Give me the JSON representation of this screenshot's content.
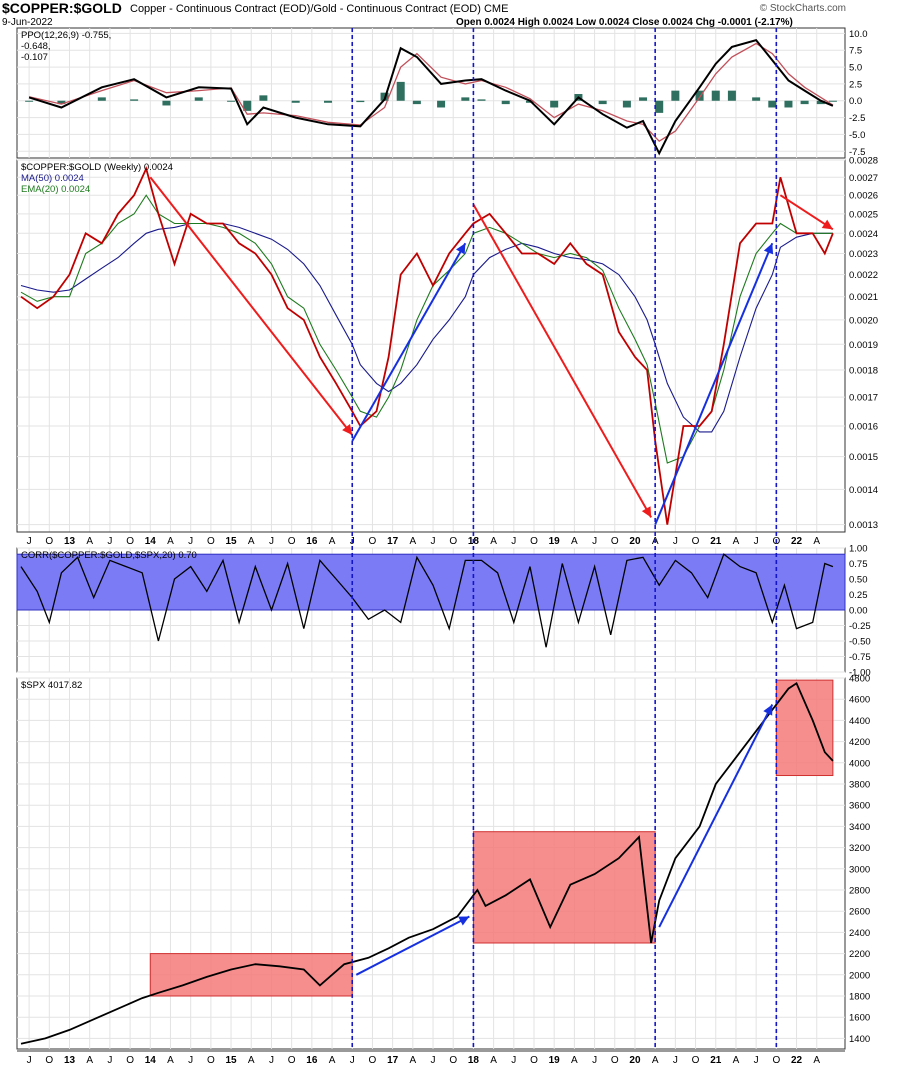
{
  "header": {
    "symbol": "$COPPER:$GOLD",
    "description": "Copper - Continuous Contract (EOD)/Gold - Continuous Contract (EOD)  CME",
    "date": "9-Jun-2022",
    "ohlc": "Open 0.0024  High 0.0024  Low 0.0024  Close 0.0024  Chg -0.0001 (-2.17%)",
    "brand": "© StockCharts.com"
  },
  "colors": {
    "price": "#000000",
    "ratio_down": "#c00000",
    "ma50": "#1a1a8c",
    "ema20": "#1e7a1e",
    "ppo_signal": "#c0505a",
    "ppo_hist": "#2f6f5f",
    "corr_band": "#7b7bf5",
    "highlight": "#f47a7a",
    "trend_up": "#1630e0",
    "trend_down": "#ee1c1c",
    "vline": "#1515c8"
  },
  "chart_data": [
    {
      "type": "line",
      "panel": "ppo",
      "legend": [
        "PPO(12,26,9) -0.755,",
        "-0.648,",
        "-0.107"
      ],
      "ylim": [
        -8.5,
        10.8
      ],
      "yticks": [
        10.0,
        7.5,
        5.0,
        2.5,
        0.0,
        -2.5,
        -5.0,
        -7.5
      ],
      "ytick_labels": [
        "10.0",
        "7.5",
        "5.0",
        "2.5",
        "0.0",
        "-2.5",
        "-5.0",
        "-7.5"
      ],
      "x": [
        2012.5,
        2012.9,
        2013.4,
        2013.8,
        2014.2,
        2014.6,
        2015.0,
        2015.2,
        2015.4,
        2015.8,
        2016.2,
        2016.6,
        2016.9,
        2017.1,
        2017.3,
        2017.6,
        2017.9,
        2018.1,
        2018.4,
        2018.7,
        2019.0,
        2019.3,
        2019.6,
        2019.9,
        2020.1,
        2020.3,
        2020.5,
        2020.8,
        2021.0,
        2021.2,
        2021.5,
        2021.7,
        2021.9,
        2022.1,
        2022.3,
        2022.45
      ],
      "series": [
        {
          "role": "ppo",
          "values": [
            0.5,
            -1.0,
            2.0,
            3.2,
            0.5,
            2.0,
            1.8,
            -3.5,
            -1.0,
            -2.5,
            -3.5,
            -3.8,
            0.2,
            7.8,
            6.5,
            2.5,
            3.0,
            3.2,
            1.5,
            0.0,
            -3.5,
            0.5,
            -2.0,
            -4.0,
            -3.0,
            -7.8,
            -3.0,
            2.0,
            5.5,
            8.0,
            9.0,
            6.0,
            3.0,
            1.5,
            0.0,
            -0.755
          ]
        },
        {
          "role": "signal",
          "values": [
            0.6,
            -0.5,
            1.5,
            3.0,
            1.2,
            1.5,
            1.9,
            -2.0,
            -1.8,
            -2.2,
            -3.2,
            -3.6,
            -1.0,
            5.0,
            7.0,
            3.5,
            2.5,
            3.0,
            2.0,
            0.3,
            -2.5,
            -0.5,
            -1.5,
            -3.0,
            -3.5,
            -6.0,
            -4.5,
            0.5,
            4.0,
            6.5,
            8.5,
            7.0,
            4.0,
            2.0,
            0.5,
            -0.648
          ]
        },
        {
          "role": "histogram",
          "values": [
            -0.1,
            -0.5,
            0.5,
            0.2,
            -0.7,
            0.5,
            -0.1,
            -1.5,
            0.8,
            -0.3,
            -0.3,
            -0.2,
            1.2,
            2.8,
            -0.5,
            -1.0,
            0.5,
            0.2,
            -0.5,
            -0.3,
            -1.0,
            1.0,
            -0.5,
            -1.0,
            0.5,
            -1.8,
            1.5,
            1.5,
            1.5,
            1.5,
            0.5,
            -1.0,
            -1.0,
            -0.5,
            -0.5,
            -0.107
          ]
        }
      ]
    },
    {
      "type": "line",
      "panel": "ratio",
      "legend": [
        "$COPPER:$GOLD (Weekly) 0.0024",
        "MA(50) 0.0024",
        "EMA(20) 0.0024"
      ],
      "ylim": [
        0.00128,
        0.0028
      ],
      "log_scale": true,
      "yticks": [
        0.0013,
        0.0014,
        0.0015,
        0.0016,
        0.0017,
        0.0018,
        0.0019,
        0.002,
        0.0021,
        0.0022,
        0.0023,
        0.0024,
        0.0025,
        0.0026,
        0.0027,
        0.0028
      ],
      "ytick_labels": [
        "0.0013",
        "0.0014",
        "0.0015",
        "0.0016",
        "0.0017",
        "0.0018",
        "0.0019",
        "0.0020",
        "0.0021",
        "0.0022",
        "0.0023",
        "0.0024",
        "0.0025",
        "0.0026",
        "0.0027",
        "0.0028"
      ],
      "x": [
        2012.4,
        2012.6,
        2012.8,
        2013.0,
        2013.2,
        2013.4,
        2013.6,
        2013.8,
        2013.95,
        2014.1,
        2014.3,
        2014.5,
        2014.7,
        2014.9,
        2015.1,
        2015.3,
        2015.5,
        2015.7,
        2015.9,
        2016.1,
        2016.3,
        2016.5,
        2016.6,
        2016.8,
        2016.95,
        2017.1,
        2017.3,
        2017.5,
        2017.7,
        2017.9,
        2018.0,
        2018.2,
        2018.4,
        2018.6,
        2018.8,
        2019.0,
        2019.2,
        2019.4,
        2019.6,
        2019.8,
        2020.0,
        2020.15,
        2020.25,
        2020.4,
        2020.6,
        2020.8,
        2020.95,
        2021.1,
        2021.3,
        2021.5,
        2021.7,
        2021.8,
        2022.0,
        2022.2,
        2022.35,
        2022.45
      ],
      "series": [
        {
          "role": "ratio",
          "values": [
            0.0021,
            0.00205,
            0.0021,
            0.0022,
            0.0024,
            0.00235,
            0.0025,
            0.0026,
            0.00275,
            0.0025,
            0.00225,
            0.0025,
            0.00245,
            0.00245,
            0.00235,
            0.0023,
            0.0022,
            0.00205,
            0.002,
            0.00185,
            0.00175,
            0.00165,
            0.0016,
            0.00165,
            0.00185,
            0.0022,
            0.0023,
            0.00215,
            0.0023,
            0.0024,
            0.00245,
            0.0025,
            0.0024,
            0.0023,
            0.0023,
            0.00225,
            0.00235,
            0.00225,
            0.0022,
            0.00195,
            0.00185,
            0.0018,
            0.00155,
            0.0013,
            0.0016,
            0.0016,
            0.00165,
            0.0019,
            0.00235,
            0.00245,
            0.00245,
            0.0027,
            0.0024,
            0.0024,
            0.0023,
            0.0024
          ]
        },
        {
          "role": "ema20",
          "values": [
            0.00212,
            0.00208,
            0.0021,
            0.0021,
            0.0023,
            0.00235,
            0.00245,
            0.0025,
            0.0026,
            0.0025,
            0.00245,
            0.00245,
            0.00245,
            0.00243,
            0.0024,
            0.00235,
            0.00225,
            0.0021,
            0.00205,
            0.0019,
            0.0018,
            0.0017,
            0.00165,
            0.00163,
            0.0017,
            0.0018,
            0.002,
            0.00215,
            0.00222,
            0.0023,
            0.0024,
            0.00243,
            0.0024,
            0.00235,
            0.0023,
            0.00228,
            0.0023,
            0.00228,
            0.00222,
            0.00205,
            0.00192,
            0.00182,
            0.00168,
            0.00148,
            0.0015,
            0.0016,
            0.00165,
            0.0018,
            0.0021,
            0.0023,
            0.0024,
            0.00245,
            0.0024,
            0.0024,
            0.0024,
            0.0024
          ]
        },
        {
          "role": "ma50",
          "values": [
            0.00215,
            0.00213,
            0.00212,
            0.00213,
            0.00218,
            0.00223,
            0.00228,
            0.00235,
            0.0024,
            0.00242,
            0.00243,
            0.00245,
            0.00245,
            0.00245,
            0.00243,
            0.0024,
            0.00237,
            0.00232,
            0.00225,
            0.00215,
            0.00202,
            0.0019,
            0.00182,
            0.00175,
            0.00172,
            0.00175,
            0.00182,
            0.00192,
            0.002,
            0.0021,
            0.0022,
            0.00228,
            0.00232,
            0.00235,
            0.00233,
            0.0023,
            0.00228,
            0.00227,
            0.00225,
            0.0022,
            0.0021,
            0.002,
            0.0019,
            0.00175,
            0.00163,
            0.00158,
            0.00158,
            0.00165,
            0.00185,
            0.00205,
            0.0022,
            0.00233,
            0.00238,
            0.0024,
            0.0024,
            0.0024
          ]
        }
      ]
    },
    {
      "type": "line",
      "panel": "corr",
      "legend": [
        "CORR($COPPER:$GOLD,$SPX,20) 0.70"
      ],
      "ylim": [
        -1.0,
        1.0
      ],
      "yticks": [
        1.0,
        0.75,
        0.5,
        0.25,
        0.0,
        -0.25,
        -0.5,
        -0.75,
        -1.0
      ],
      "ytick_labels": [
        "1.00",
        "0.75",
        "0.50",
        "0.25",
        "0.00",
        "-0.25",
        "-0.50",
        "-0.75",
        "-1.00"
      ],
      "x": [
        2012.4,
        2012.6,
        2012.75,
        2012.9,
        2013.1,
        2013.3,
        2013.5,
        2013.7,
        2013.9,
        2014.1,
        2014.3,
        2014.5,
        2014.7,
        2014.9,
        2015.1,
        2015.3,
        2015.5,
        2015.7,
        2015.9,
        2016.1,
        2016.3,
        2016.5,
        2016.7,
        2016.9,
        2017.1,
        2017.3,
        2017.5,
        2017.7,
        2017.9,
        2018.1,
        2018.3,
        2018.5,
        2018.7,
        2018.9,
        2019.1,
        2019.3,
        2019.5,
        2019.7,
        2019.9,
        2020.1,
        2020.3,
        2020.5,
        2020.7,
        2020.9,
        2021.1,
        2021.3,
        2021.5,
        2021.7,
        2021.85,
        2022.0,
        2022.2,
        2022.35,
        2022.45
      ],
      "series": [
        {
          "role": "corr",
          "values": [
            0.7,
            0.3,
            -0.2,
            0.6,
            0.85,
            0.2,
            0.8,
            0.7,
            0.6,
            -0.5,
            0.5,
            0.7,
            0.3,
            0.8,
            -0.2,
            0.7,
            0.0,
            0.75,
            -0.3,
            0.8,
            0.5,
            0.2,
            -0.15,
            0.0,
            -0.2,
            0.85,
            0.4,
            -0.3,
            0.8,
            0.8,
            0.6,
            -0.2,
            0.7,
            -0.6,
            0.75,
            -0.2,
            0.7,
            -0.4,
            0.8,
            0.85,
            0.4,
            0.8,
            0.6,
            0.2,
            0.9,
            0.7,
            0.6,
            -0.2,
            0.4,
            -0.3,
            -0.2,
            0.75,
            0.7
          ]
        }
      ]
    },
    {
      "type": "line",
      "panel": "spx",
      "legend": [
        "$SPX 4017.82"
      ],
      "ylim": [
        1300,
        4800
      ],
      "yticks": [
        1400,
        1600,
        1800,
        2000,
        2200,
        2400,
        2600,
        2800,
        3000,
        3200,
        3400,
        3600,
        3800,
        4000,
        4200,
        4400,
        4600,
        4800
      ],
      "ytick_labels": [
        "1400",
        "1600",
        "1800",
        "2000",
        "2200",
        "2400",
        "2600",
        "2800",
        "3000",
        "3200",
        "3400",
        "3600",
        "3800",
        "4000",
        "4200",
        "4400",
        "4600",
        "4800"
      ],
      "x": [
        2012.4,
        2012.7,
        2013.0,
        2013.3,
        2013.6,
        2013.9,
        2014.1,
        2014.4,
        2014.7,
        2015.0,
        2015.3,
        2015.6,
        2015.9,
        2016.1,
        2016.4,
        2016.7,
        2016.95,
        2017.2,
        2017.5,
        2017.8,
        2018.05,
        2018.15,
        2018.4,
        2018.7,
        2018.95,
        2019.2,
        2019.5,
        2019.8,
        2020.05,
        2020.2,
        2020.3,
        2020.5,
        2020.8,
        2021.0,
        2021.3,
        2021.6,
        2021.9,
        2022.0,
        2022.2,
        2022.35,
        2022.45
      ],
      "series": [
        {
          "role": "spx",
          "values": [
            1350,
            1400,
            1480,
            1580,
            1680,
            1780,
            1830,
            1900,
            1980,
            2050,
            2100,
            2080,
            2050,
            1900,
            2100,
            2160,
            2250,
            2350,
            2430,
            2550,
            2800,
            2650,
            2750,
            2900,
            2450,
            2850,
            2950,
            3100,
            3300,
            2300,
            2700,
            3100,
            3400,
            3800,
            4100,
            4400,
            4700,
            4750,
            4400,
            4100,
            4017.82
          ]
        }
      ]
    }
  ],
  "x_axis": {
    "top_labels": [
      {
        "t": 2012.5,
        "label": "J"
      },
      {
        "t": 2012.75,
        "label": "O"
      },
      {
        "t": 2013.0,
        "label": "13"
      },
      {
        "t": 2013.25,
        "label": "A"
      },
      {
        "t": 2013.5,
        "label": "J"
      },
      {
        "t": 2013.75,
        "label": "O"
      },
      {
        "t": 2014.0,
        "label": "14"
      },
      {
        "t": 2014.25,
        "label": "A"
      },
      {
        "t": 2014.5,
        "label": "J"
      },
      {
        "t": 2014.75,
        "label": "O"
      },
      {
        "t": 2015.0,
        "label": "15"
      },
      {
        "t": 2015.25,
        "label": "A"
      },
      {
        "t": 2015.5,
        "label": "J"
      },
      {
        "t": 2015.75,
        "label": "O"
      },
      {
        "t": 2016.0,
        "label": "16"
      },
      {
        "t": 2016.25,
        "label": "A"
      },
      {
        "t": 2016.5,
        "label": "J"
      },
      {
        "t": 2016.75,
        "label": "O"
      },
      {
        "t": 2017.0,
        "label": "17"
      },
      {
        "t": 2017.25,
        "label": "A"
      },
      {
        "t": 2017.5,
        "label": "J"
      },
      {
        "t": 2017.75,
        "label": "O"
      },
      {
        "t": 2018.0,
        "label": "18"
      },
      {
        "t": 2018.25,
        "label": "A"
      },
      {
        "t": 2018.5,
        "label": "J"
      },
      {
        "t": 2018.75,
        "label": "O"
      },
      {
        "t": 2019.0,
        "label": "19"
      },
      {
        "t": 2019.25,
        "label": "A"
      },
      {
        "t": 2019.5,
        "label": "J"
      },
      {
        "t": 2019.75,
        "label": "O"
      },
      {
        "t": 2020.0,
        "label": "20"
      },
      {
        "t": 2020.25,
        "label": "A"
      },
      {
        "t": 2020.5,
        "label": "J"
      },
      {
        "t": 2020.75,
        "label": "O"
      },
      {
        "t": 2021.0,
        "label": "21"
      },
      {
        "t": 2021.25,
        "label": "A"
      },
      {
        "t": 2021.5,
        "label": "J"
      },
      {
        "t": 2021.75,
        "label": "O"
      },
      {
        "t": 2022.0,
        "label": "22"
      },
      {
        "t": 2022.25,
        "label": "A"
      }
    ]
  },
  "annotations": {
    "vertical_lines": [
      2016.5,
      2018.0,
      2020.25,
      2021.75
    ],
    "ratio_trend_lines": [
      {
        "color": "down",
        "from": [
          2014.0,
          0.0027
        ],
        "to": [
          2016.5,
          0.00157
        ]
      },
      {
        "color": "up",
        "from": [
          2016.5,
          0.00155
        ],
        "to": [
          2017.9,
          0.00235
        ]
      },
      {
        "color": "down",
        "from": [
          2018.0,
          0.00255
        ],
        "to": [
          2020.2,
          0.00132
        ]
      },
      {
        "color": "up",
        "from": [
          2020.25,
          0.0013
        ],
        "to": [
          2021.7,
          0.00235
        ]
      },
      {
        "color": "down",
        "from": [
          2021.8,
          0.0026
        ],
        "to": [
          2022.45,
          0.00242
        ]
      }
    ],
    "spx_trend_lines": [
      {
        "color": "up",
        "from": [
          2016.55,
          2000
        ],
        "to": [
          2017.95,
          2550
        ]
      },
      {
        "color": "up",
        "from": [
          2020.3,
          2450
        ],
        "to": [
          2021.7,
          4550
        ]
      }
    ],
    "spx_boxes": [
      {
        "x0": 2014.0,
        "x1": 2016.5,
        "y0": 1800,
        "y1": 2200
      },
      {
        "x0": 2018.0,
        "x1": 2020.25,
        "y0": 2300,
        "y1": 3350
      },
      {
        "x0": 2021.75,
        "x1": 2022.45,
        "y0": 3880,
        "y1": 4780
      }
    ]
  }
}
